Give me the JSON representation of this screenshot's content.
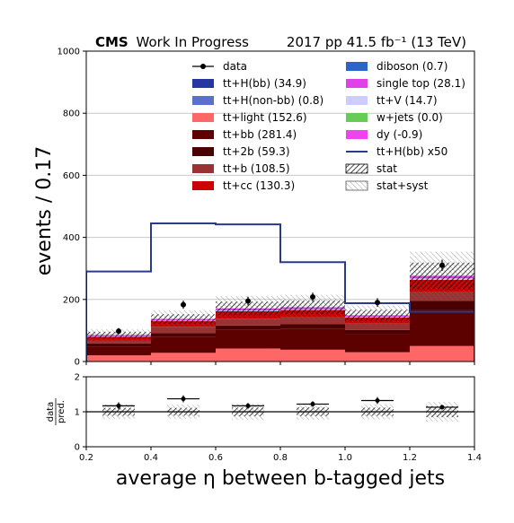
{
  "chart_data": {
    "type": "bar",
    "title_bold": "CMS",
    "title_normal": "Work In Progress",
    "title_right": "2017 pp 41.5 fb⁻¹ (13 TeV)",
    "xlabel": "average η between b-tagged jets",
    "ylabel": "events / 0.17",
    "ratio_ylabel_top": "data",
    "ratio_ylabel_bottom": "pred.",
    "xlim": [
      0.2,
      1.4
    ],
    "ylim": [
      0,
      1000
    ],
    "ratio_ylim": [
      0,
      2
    ],
    "x_ticks": [
      "0.2",
      "0.4",
      "0.6",
      "0.8",
      "1.0",
      "1.2",
      "1.4"
    ],
    "y_ticks": [
      "0",
      "200",
      "400",
      "600",
      "800",
      "1000"
    ],
    "ratio_y_ticks": [
      "0",
      "1",
      "2"
    ],
    "bin_edges": [
      0.2,
      0.4,
      0.6,
      0.8,
      1.0,
      1.2,
      1.4
    ],
    "stack": [
      {
        "name": "tt+light (152.6)",
        "color": "#ff6666",
        "values": [
          20,
          28,
          42,
          38,
          30,
          50
        ]
      },
      {
        "name": "tt+bb (281.4)",
        "color": "#5c0000",
        "values": [
          28,
          52,
          60,
          68,
          58,
          115
        ]
      },
      {
        "name": "tt+2b (59.3)",
        "color": "#4a0000",
        "values": [
          10,
          12,
          14,
          14,
          14,
          30
        ]
      },
      {
        "name": "tt+b (108.5)",
        "color": "#993333",
        "values": [
          10,
          20,
          22,
          22,
          20,
          28
        ]
      },
      {
        "name": "tt+cc (130.3)",
        "color": "#cc0000",
        "values": [
          12,
          18,
          24,
          24,
          20,
          40
        ]
      },
      {
        "name": "tt+V (14.7)",
        "color": "#ccccff",
        "values": [
          2,
          2,
          3,
          3,
          2,
          5
        ]
      },
      {
        "name": "single top (28.1)",
        "color": "#e040e8",
        "values": [
          4,
          5,
          6,
          6,
          5,
          8
        ]
      }
    ],
    "total_prediction": [
      86,
      137,
      171,
      175,
      149,
      276
    ],
    "uncertainty_half_width": [
      18,
      28,
      40,
      40,
      32,
      78
    ],
    "signal_overlay": {
      "name": "tt+H(bb) x50",
      "color": "#2a3a8a",
      "values": [
        290,
        445,
        442,
        320,
        188,
        160
      ]
    },
    "data_points": {
      "name": "data",
      "x": [
        0.3,
        0.5,
        0.7,
        0.9,
        1.1,
        1.3
      ],
      "y": [
        98,
        183,
        195,
        208,
        190,
        310
      ],
      "yerr": [
        10,
        13,
        14,
        14,
        14,
        18
      ]
    },
    "ratio_points": {
      "y": [
        1.17,
        1.37,
        1.17,
        1.22,
        1.32,
        1.13
      ],
      "yerr": [
        0.1,
        0.1,
        0.08,
        0.08,
        0.1,
        0.06
      ]
    },
    "legend_left": [
      {
        "label": "data",
        "kind": "marker",
        "color": "#000000"
      },
      {
        "label": "tt+H(bb) (34.9)",
        "kind": "box",
        "color": "#2638a0"
      },
      {
        "label": "tt+H(non-bb) (0.8)",
        "kind": "box",
        "color": "#5a70cc"
      },
      {
        "label": "tt+light (152.6)",
        "kind": "box",
        "color": "#ff6666"
      },
      {
        "label": "tt+bb (281.4)",
        "kind": "box",
        "color": "#5c0000"
      },
      {
        "label": "tt+2b (59.3)",
        "kind": "box",
        "color": "#4a0000"
      },
      {
        "label": "tt+b (108.5)",
        "kind": "box",
        "color": "#993333"
      },
      {
        "label": "tt+cc (130.3)",
        "kind": "box",
        "color": "#cc0000"
      }
    ],
    "legend_right": [
      {
        "label": "diboson (0.7)",
        "kind": "box",
        "color": "#2a66c8"
      },
      {
        "label": "single top (28.1)",
        "kind": "box",
        "color": "#e040e8"
      },
      {
        "label": "tt+V (14.7)",
        "kind": "box",
        "color": "#ccccff"
      },
      {
        "label": "w+jets (0.0)",
        "kind": "box",
        "color": "#66cc55"
      },
      {
        "label": "dy (-0.9)",
        "kind": "box",
        "color": "#ee44ee"
      },
      {
        "label": "tt+H(bb) x50",
        "kind": "line",
        "color": "#2a3a8a"
      },
      {
        "label": "stat",
        "kind": "hatch-dense",
        "color": "#000000"
      },
      {
        "label": "stat+syst",
        "kind": "hatch-light",
        "color": "#555555"
      }
    ],
    "legend_placement": "top-right"
  }
}
